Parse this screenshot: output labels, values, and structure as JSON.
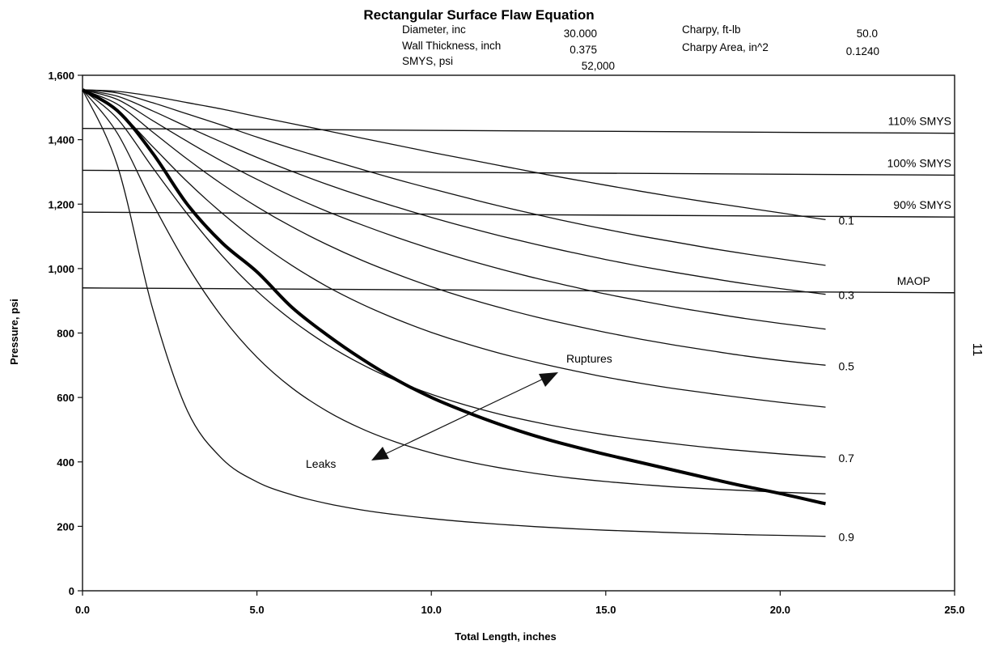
{
  "chart_data": {
    "type": "line",
    "title": "Rectangular Surface Flaw Equation",
    "header_params": [
      {
        "label": "Diameter, inc",
        "value": "30.000"
      },
      {
        "label": "Wall Thickness, inch",
        "value": "0.375"
      },
      {
        "label": "SMYS, psi",
        "value": "52,000"
      },
      {
        "label": "Charpy, ft-lb",
        "value": "50.0"
      },
      {
        "label": "Charpy Area, in^2",
        "value": "0.1240"
      }
    ],
    "xlabel": "Total Length, inches",
    "ylabel": "Pressure, psi",
    "xlim": [
      0,
      25
    ],
    "ylim": [
      0,
      1600
    ],
    "x_ticks": [
      "0.0",
      "5.0",
      "10.0",
      "15.0",
      "20.0",
      "25.0"
    ],
    "y_ticks": [
      "0",
      "200",
      "400",
      "600",
      "800",
      "1,000",
      "1,200",
      "1,400",
      "1,600"
    ],
    "reference_lines": [
      {
        "label": "110% SMYS",
        "value": 1430
      },
      {
        "label": "100% SMYS",
        "value": 1300
      },
      {
        "label": "90% SMYS",
        "value": 1170
      },
      {
        "label": "MAOP",
        "value": 935
      }
    ],
    "x": [
      0,
      1,
      2,
      3,
      4,
      5,
      6,
      7,
      8,
      9,
      10,
      11,
      12,
      13,
      14,
      15,
      16,
      17,
      18,
      19,
      20,
      21.3
    ],
    "series": [
      {
        "name": "0.1",
        "values": [
          1555,
          1550,
          1535,
          1515,
          1495,
          1472,
          1450,
          1428,
          1405,
          1383,
          1361,
          1340,
          1319,
          1298,
          1278,
          1259,
          1240,
          1222,
          1205,
          1189,
          1173,
          1152
        ]
      },
      {
        "values": [
          1555,
          1545,
          1515,
          1480,
          1445,
          1408,
          1373,
          1340,
          1308,
          1277,
          1248,
          1220,
          1193,
          1168,
          1144,
          1122,
          1101,
          1082,
          1063,
          1046,
          1030,
          1010
        ]
      },
      {
        "name": "0.3",
        "values": [
          1555,
          1535,
          1490,
          1440,
          1392,
          1345,
          1302,
          1262,
          1225,
          1191,
          1159,
          1129,
          1101,
          1075,
          1051,
          1028,
          1007,
          988,
          970,
          953,
          938,
          920
        ]
      },
      {
        "values": [
          1555,
          1525,
          1460,
          1395,
          1333,
          1277,
          1225,
          1178,
          1136,
          1097,
          1061,
          1028,
          998,
          970,
          945,
          921,
          900,
          880,
          862,
          845,
          830,
          812
        ]
      },
      {
        "name": "0.5",
        "values": [
          1555,
          1510,
          1425,
          1340,
          1262,
          1192,
          1130,
          1075,
          1026,
          983,
          944,
          909,
          878,
          850,
          825,
          802,
          781,
          762,
          745,
          729,
          715,
          700
        ]
      },
      {
        "values": [
          1555,
          1490,
          1380,
          1270,
          1172,
          1085,
          1010,
          945,
          890,
          843,
          802,
          767,
          736,
          709,
          685,
          663,
          644,
          627,
          612,
          598,
          585,
          570
        ]
      },
      {
        "name": "0.7",
        "values": [
          1555,
          1465,
          1315,
          1170,
          1040,
          930,
          840,
          765,
          703,
          652,
          610,
          576,
          547,
          523,
          502,
          484,
          469,
          456,
          444,
          434,
          425,
          415
        ]
      },
      {
        "values": [
          1555,
          1420,
          1205,
          1010,
          850,
          725,
          630,
          558,
          503,
          461,
          428,
          402,
          381,
          364,
          350,
          339,
          330,
          322,
          316,
          311,
          306,
          301
        ]
      },
      {
        "name": "0.9",
        "values": [
          1555,
          1320,
          880,
          560,
          410,
          338,
          298,
          271,
          251,
          236,
          224,
          214,
          206,
          199,
          193,
          188,
          184,
          180,
          177,
          174,
          172,
          169
        ]
      }
    ],
    "leak_rupture_boundary": {
      "values": [
        1555,
        1490,
        1360,
        1200,
        1080,
        990,
        880,
        795,
        720,
        655,
        600,
        555,
        515,
        480,
        450,
        423,
        398,
        373,
        348,
        324,
        302,
        270
      ]
    },
    "annotations": [
      "Ruptures",
      "Leaks"
    ],
    "margin_note": "11",
    "grid": false,
    "legend": "none"
  }
}
